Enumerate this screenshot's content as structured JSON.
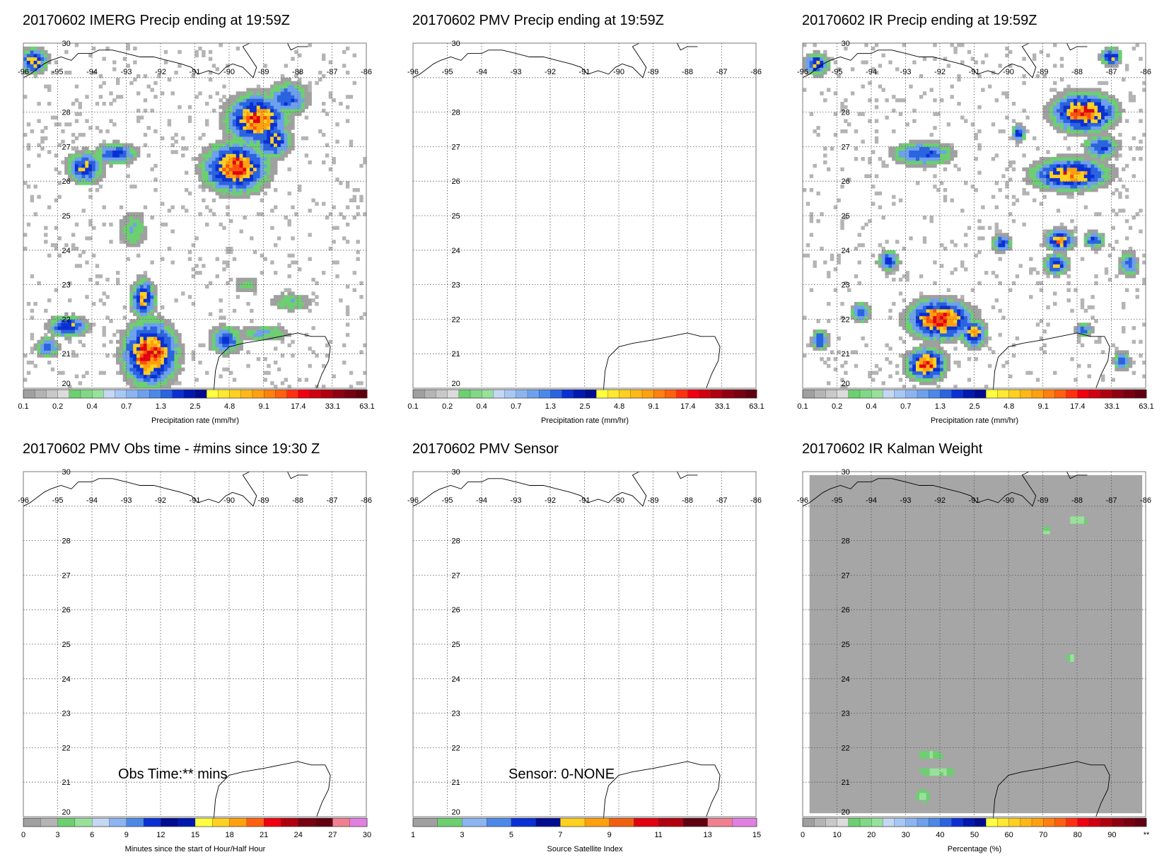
{
  "panels": [
    {
      "title": "20170602 IMERG Precip ending at 19:59Z",
      "map": {
        "lon": [
          -96,
          -86
        ],
        "lat": [
          20,
          30
        ],
        "lon_ticks": [
          "-96",
          "-95",
          "-94",
          "-93",
          "-92",
          "-91",
          "-90",
          "-89",
          "-88",
          "-87",
          "-86"
        ],
        "lat_ticks": [
          "30",
          "28",
          "27",
          "26",
          "25",
          "24",
          "23",
          "22",
          "21",
          "20"
        ],
        "field": "imerg"
      },
      "colorbar": {
        "label": "Precipitation rate (mm/hr)",
        "tick_labels": [
          "0.1",
          "0.2",
          "0.4",
          "0.7",
          "1.3",
          "2.5",
          "4.8",
          "9.1",
          "17.4",
          "33.1",
          "63.1"
        ],
        "palette": "precip"
      }
    },
    {
      "title": "20170602 PMV Precip ending at 19:59Z",
      "map": {
        "lon": [
          -96,
          -86
        ],
        "lat": [
          20,
          30
        ],
        "lon_ticks": [
          "-96",
          "-95",
          "-94",
          "-93",
          "-92",
          "-91",
          "-90",
          "-89",
          "-88",
          "-87",
          "-86"
        ],
        "lat_ticks": [
          "30",
          "28",
          "27",
          "26",
          "25",
          "24",
          "23",
          "22",
          "21",
          "20"
        ],
        "field": "none"
      },
      "colorbar": {
        "label": "Precipitation rate (mm/hr)",
        "tick_labels": [
          "0.1",
          "0.2",
          "0.4",
          "0.7",
          "1.3",
          "2.5",
          "4.8",
          "9.1",
          "17.4",
          "33.1",
          "63.1"
        ],
        "palette": "precip"
      }
    },
    {
      "title": "20170602 IR Precip ending at 19:59Z",
      "map": {
        "lon": [
          -96,
          -86
        ],
        "lat": [
          20,
          30
        ],
        "lon_ticks": [
          "-96",
          "-95",
          "-94",
          "-93",
          "-92",
          "-91",
          "-90",
          "-89",
          "-88",
          "-87",
          "-86"
        ],
        "lat_ticks": [
          "30",
          "28",
          "27",
          "26",
          "25",
          "24",
          "23",
          "22",
          "21",
          "20"
        ],
        "field": "ir"
      },
      "colorbar": {
        "label": "Precipitation rate (mm/hr)",
        "tick_labels": [
          "0.1",
          "0.2",
          "0.4",
          "0.7",
          "1.3",
          "2.5",
          "4.8",
          "9.1",
          "17.4",
          "33.1",
          "63.1"
        ],
        "palette": "precip"
      }
    },
    {
      "title": "20170602 PMV Obs time - #mins since 19:30 Z",
      "map": {
        "lon": [
          -96,
          -86
        ],
        "lat": [
          20,
          30
        ],
        "lon_ticks": [
          "-96",
          "-95",
          "-94",
          "-93",
          "-92",
          "-91",
          "-90",
          "-89",
          "-88",
          "-87",
          "-86"
        ],
        "lat_ticks": [
          "30",
          "28",
          "27",
          "26",
          "25",
          "24",
          "23",
          "22",
          "21",
          "20"
        ],
        "field": "none"
      },
      "note": "Obs Time:** mins",
      "colorbar": {
        "label": "Minutes since the start of Hour/Half Hour",
        "tick_labels": [
          "0",
          "3",
          "6",
          "9",
          "12",
          "15",
          "18",
          "21",
          "24",
          "27",
          "30"
        ],
        "palette": "minutes"
      }
    },
    {
      "title": "20170602 PMV Sensor",
      "map": {
        "lon": [
          -96,
          -86
        ],
        "lat": [
          20,
          30
        ],
        "lon_ticks": [
          "-96",
          "-95",
          "-94",
          "-93",
          "-92",
          "-91",
          "-90",
          "-89",
          "-88",
          "-87",
          "-86"
        ],
        "lat_ticks": [
          "30",
          "28",
          "27",
          "26",
          "25",
          "24",
          "23",
          "22",
          "21",
          "20"
        ],
        "field": "none"
      },
      "note": "Sensor:  0-NONE",
      "colorbar": {
        "label": "Source Satellite Index",
        "tick_labels": [
          "1",
          "3",
          "5",
          "7",
          "9",
          "11",
          "13",
          "15"
        ],
        "palette": "sensor"
      }
    },
    {
      "title": "20170602 IR Kalman Weight",
      "map": {
        "lon": [
          -96,
          -86
        ],
        "lat": [
          20,
          30
        ],
        "lon_ticks": [
          "-96",
          "-95",
          "-94",
          "-93",
          "-92",
          "-91",
          "-90",
          "-89",
          "-88",
          "-87",
          "-86"
        ],
        "lat_ticks": [
          "30",
          "28",
          "27",
          "26",
          "25",
          "24",
          "23",
          "22",
          "21",
          "20"
        ],
        "field": "kalman"
      },
      "colorbar": {
        "label": "Percentage (%)",
        "tick_labels": [
          "0",
          "10",
          "20",
          "30",
          "40",
          "50",
          "60",
          "70",
          "80",
          "90",
          "**"
        ],
        "palette": "percent"
      }
    }
  ],
  "palettes": {
    "precip": [
      "#a0a0a0",
      "#b4b4b4",
      "#c8c8c8",
      "#dcdcdc",
      "#6ccf70",
      "#82d886",
      "#98e19b",
      "#c4d8f4",
      "#a8c8f4",
      "#8cb4f0",
      "#6ea0ec",
      "#4c88e8",
      "#2a64e0",
      "#0a30d4",
      "#0018b0",
      "#000c90",
      "#ffff40",
      "#ffe830",
      "#ffd020",
      "#ffb818",
      "#ffa010",
      "#ff8010",
      "#ff6010",
      "#ff3010",
      "#f00010",
      "#d00010",
      "#b00010",
      "#900010",
      "#780010",
      "#600010"
    ],
    "minutes": [
      "#a0a0a0",
      "#b4b4b4",
      "#6ccf70",
      "#98e19b",
      "#c4d8f4",
      "#8cb4f0",
      "#4c88e8",
      "#0a30d4",
      "#000c90",
      "#0018b0",
      "#ffff40",
      "#ffd020",
      "#ffa010",
      "#ff6010",
      "#f00010",
      "#b00010",
      "#780010",
      "#600010",
      "#f08090",
      "#e080e0"
    ],
    "sensor": [
      "#a0a0a0",
      "#6ccf70",
      "#8cb4f0",
      "#4c88e8",
      "#0a30d4",
      "#000c90",
      "#ffd020",
      "#ffa010",
      "#f06010",
      "#e00010",
      "#b00010",
      "#600010",
      "#f08090",
      "#e080e0"
    ],
    "percent": [
      "#a0a0a0",
      "#b4b4b4",
      "#c8c8c8",
      "#dcdcdc",
      "#6ccf70",
      "#82d886",
      "#98e19b",
      "#c4d8f4",
      "#a8c8f4",
      "#8cb4f0",
      "#6ea0ec",
      "#4c88e8",
      "#2a64e0",
      "#0a30d4",
      "#0018b0",
      "#000c90",
      "#ffff40",
      "#ffe830",
      "#ffd020",
      "#ffb818",
      "#ffa010",
      "#ff8010",
      "#ff6010",
      "#ff3010",
      "#f00010",
      "#d00010",
      "#b00010",
      "#900010",
      "#780010",
      "#600010"
    ]
  }
}
